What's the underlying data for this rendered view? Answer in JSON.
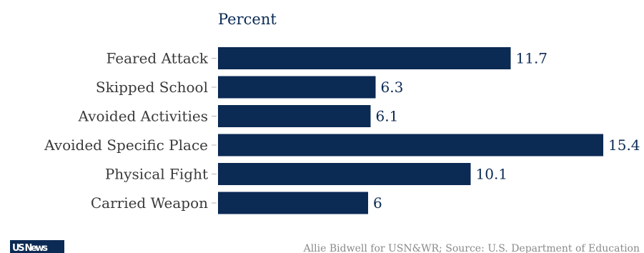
{
  "chart_data": {
    "type": "bar",
    "orientation": "horizontal",
    "unit_label": "Percent",
    "categories": [
      "Feared Attack",
      "Skipped School",
      "Avoided Activities",
      "Avoided Specific Place",
      "Physical Fight",
      "Carried Weapon"
    ],
    "values": [
      11.7,
      6.3,
      6.1,
      15.4,
      10.1,
      6
    ],
    "value_labels": [
      "11.7",
      "6.3",
      "6.1",
      "15.4",
      "10.1",
      "6"
    ],
    "xlim": [
      0,
      16
    ],
    "grid": false,
    "bar_color": "#0b2a54"
  },
  "footer": {
    "source": "Allie Bidwell for USN&WR; Source: U.S. Department of Education",
    "logo_text": "US News",
    "logo_color": "#0b2a54"
  }
}
